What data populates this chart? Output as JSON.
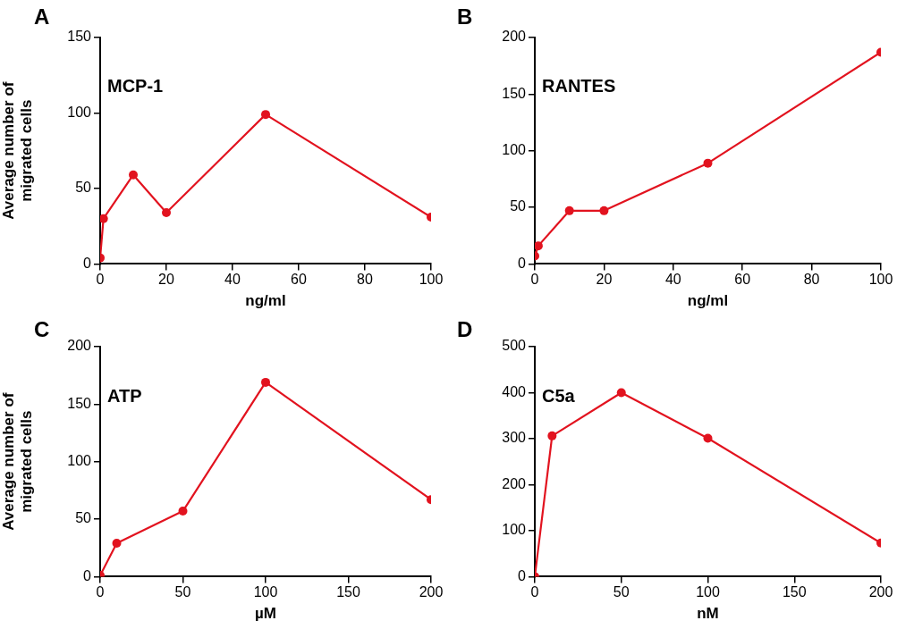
{
  "chart_data": [
    {
      "type": "line",
      "title": "A",
      "annotations": [
        "MCP-1"
      ],
      "xlabel": "ng/ml",
      "ylabel": "Average number of migrated cells",
      "x": [
        0,
        1,
        10,
        20,
        50,
        100
      ],
      "series": [
        {
          "color": "#e2131f",
          "values": [
            4,
            30,
            59,
            34,
            99,
            31
          ]
        }
      ],
      "xlim": [
        0,
        100
      ],
      "xticks": [
        0,
        20,
        40,
        60,
        80,
        100
      ],
      "ylim": [
        0,
        150
      ],
      "yticks": [
        0,
        50,
        100,
        150
      ],
      "grid": false,
      "legend": false,
      "marker": "circle",
      "line_style": "solid"
    },
    {
      "type": "line",
      "title": "B",
      "annotations": [
        "RANTES"
      ],
      "xlabel": "ng/ml",
      "x": [
        0,
        1,
        10,
        20,
        50,
        100
      ],
      "series": [
        {
          "color": "#e2131f",
          "values": [
            7,
            16,
            47,
            47,
            89,
            187
          ]
        }
      ],
      "xlim": [
        0,
        100
      ],
      "xticks": [
        0,
        20,
        40,
        60,
        80,
        100
      ],
      "ylim": [
        0,
        200
      ],
      "yticks": [
        0,
        50,
        100,
        150,
        200
      ],
      "grid": false,
      "legend": false,
      "marker": "circle",
      "line_style": "solid"
    },
    {
      "type": "line",
      "title": "C",
      "annotations": [
        "ATP"
      ],
      "xlabel": "µM",
      "ylabel": "Average number of migrated cells",
      "x": [
        0,
        10,
        50,
        100,
        200
      ],
      "series": [
        {
          "color": "#e2131f",
          "values": [
            1,
            29,
            57,
            169,
            67
          ]
        }
      ],
      "xlim": [
        0,
        200
      ],
      "xticks": [
        0,
        50,
        100,
        150,
        200
      ],
      "ylim": [
        0,
        200
      ],
      "yticks": [
        0,
        50,
        100,
        150,
        200
      ],
      "grid": false,
      "legend": false,
      "marker": "circle",
      "line_style": "solid"
    },
    {
      "type": "line",
      "title": "D",
      "annotations": [
        "C5a"
      ],
      "xlabel": "nM",
      "x": [
        0,
        10,
        50,
        100,
        200
      ],
      "series": [
        {
          "color": "#e2131f",
          "values": [
            0,
            306,
            400,
            301,
            73
          ]
        }
      ],
      "xlim": [
        0,
        200
      ],
      "xticks": [
        0,
        50,
        100,
        150,
        200
      ],
      "ylim": [
        0,
        500
      ],
      "yticks": [
        0,
        100,
        200,
        300,
        400,
        500
      ],
      "grid": false,
      "legend": false,
      "marker": "circle",
      "line_style": "solid"
    }
  ]
}
